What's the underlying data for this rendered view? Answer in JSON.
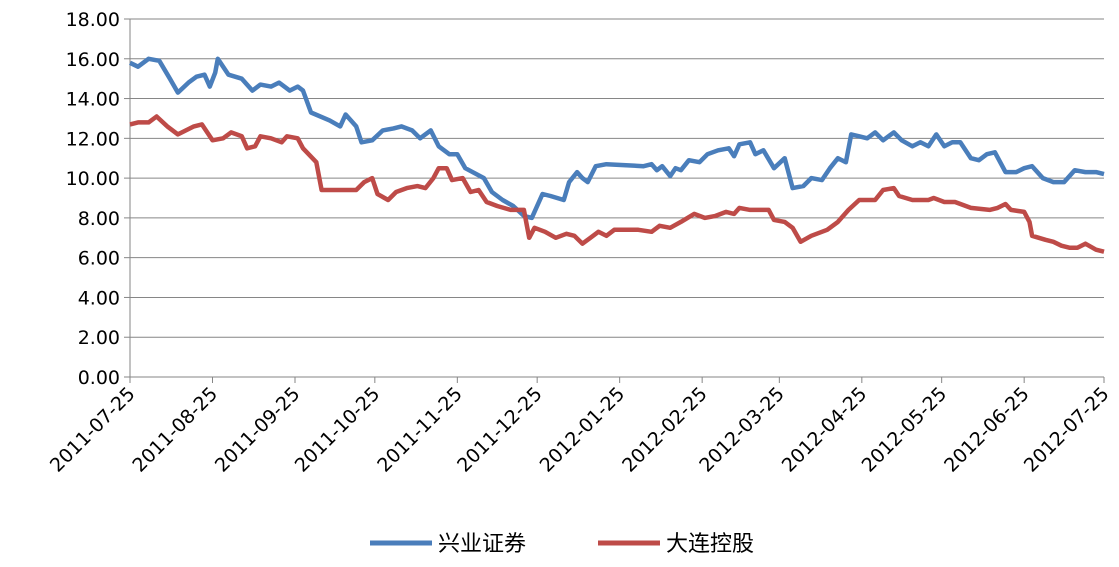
{
  "chart_data": {
    "type": "line",
    "xlim": [
      "2011-07-25",
      "2012-07-25"
    ],
    "xticks": [
      "2011-07-25",
      "2011-08-25",
      "2011-09-25",
      "2011-10-25",
      "2011-11-25",
      "2011-12-25",
      "2012-01-25",
      "2012-02-25",
      "2012-03-25",
      "2012-04-25",
      "2012-05-25",
      "2012-06-25",
      "2012-07-25"
    ],
    "ylim": [
      0,
      18
    ],
    "yticks": [
      {
        "value": 0,
        "label": "0.00"
      },
      {
        "value": 2,
        "label": "2.00"
      },
      {
        "value": 4,
        "label": "4.00"
      },
      {
        "value": 6,
        "label": "6.00"
      },
      {
        "value": 8,
        "label": "8.00"
      },
      {
        "value": 10,
        "label": "10.00"
      },
      {
        "value": 12,
        "label": "12.00"
      },
      {
        "value": 14,
        "label": "14.00"
      },
      {
        "value": 16,
        "label": "16.00"
      },
      {
        "value": 18,
        "label": "18.00"
      }
    ],
    "grid": true,
    "legend": "bottom",
    "series": [
      {
        "name": "兴业证券",
        "color": "#4a7ebb",
        "x": [
          "2011-07-25",
          "2011-07-28",
          "2011-08-01",
          "2011-08-05",
          "2011-08-09",
          "2011-08-12",
          "2011-08-16",
          "2011-08-19",
          "2011-08-22",
          "2011-08-24",
          "2011-08-26",
          "2011-08-27",
          "2011-08-31",
          "2011-09-05",
          "2011-09-09",
          "2011-09-12",
          "2011-09-16",
          "2011-09-19",
          "2011-09-23",
          "2011-09-26",
          "2011-09-28",
          "2011-10-01",
          "2011-10-08",
          "2011-10-12",
          "2011-10-14",
          "2011-10-18",
          "2011-10-20",
          "2011-10-24",
          "2011-10-28",
          "2011-11-01",
          "2011-11-04",
          "2011-11-08",
          "2011-11-11",
          "2011-11-15",
          "2011-11-18",
          "2011-11-22",
          "2011-11-25",
          "2011-11-28",
          "2011-12-05",
          "2011-12-08",
          "2011-12-12",
          "2011-12-16",
          "2011-12-20",
          "2011-12-23",
          "2011-12-27",
          "2011-12-30",
          "2012-01-04",
          "2012-01-06",
          "2012-01-09",
          "2012-01-11",
          "2012-01-13",
          "2012-01-16",
          "2012-01-20",
          "2012-02-03",
          "2012-02-06",
          "2012-02-08",
          "2012-02-10",
          "2012-02-13",
          "2012-02-15",
          "2012-02-17",
          "2012-02-20",
          "2012-02-24",
          "2012-02-27",
          "2012-03-02",
          "2012-03-06",
          "2012-03-08",
          "2012-03-10",
          "2012-03-14",
          "2012-03-16",
          "2012-03-19",
          "2012-03-23",
          "2012-03-27",
          "2012-03-30",
          "2012-04-03",
          "2012-04-06",
          "2012-04-10",
          "2012-04-13",
          "2012-04-16",
          "2012-04-19",
          "2012-04-21",
          "2012-04-24",
          "2012-04-27",
          "2012-04-30",
          "2012-05-03",
          "2012-05-07",
          "2012-05-10",
          "2012-05-14",
          "2012-05-17",
          "2012-05-20",
          "2012-05-23",
          "2012-05-26",
          "2012-05-29",
          "2012-06-01",
          "2012-06-05",
          "2012-06-08",
          "2012-06-11",
          "2012-06-14",
          "2012-06-18",
          "2012-06-22",
          "2012-06-25",
          "2012-06-28",
          "2012-07-02",
          "2012-07-06",
          "2012-07-10",
          "2012-07-14",
          "2012-07-18",
          "2012-07-22",
          "2012-07-25"
        ],
        "values": [
          15.8,
          15.6,
          16.0,
          15.9,
          15.0,
          14.3,
          14.8,
          15.1,
          15.2,
          14.6,
          15.3,
          16.0,
          15.2,
          15.0,
          14.4,
          14.7,
          14.6,
          14.8,
          14.4,
          14.6,
          14.4,
          13.3,
          12.9,
          12.6,
          13.2,
          12.6,
          11.8,
          11.9,
          12.4,
          12.5,
          12.6,
          12.4,
          12.0,
          12.4,
          11.6,
          11.2,
          11.2,
          10.5,
          10.0,
          9.3,
          8.9,
          8.6,
          8.1,
          8.0,
          9.2,
          9.1,
          8.9,
          9.8,
          10.3,
          10.0,
          9.8,
          10.6,
          10.7,
          10.6,
          10.7,
          10.4,
          10.6,
          10.1,
          10.5,
          10.4,
          10.9,
          10.8,
          11.2,
          11.4,
          11.5,
          11.1,
          11.7,
          11.8,
          11.2,
          11.4,
          10.5,
          11.0,
          9.5,
          9.6,
          10.0,
          9.9,
          10.5,
          11.0,
          10.8,
          12.2,
          12.1,
          12.0,
          12.3,
          11.9,
          12.3,
          11.9,
          11.6,
          11.8,
          11.6,
          12.2,
          11.6,
          11.8,
          11.8,
          11.0,
          10.9,
          11.2,
          11.3,
          10.3,
          10.3,
          10.5,
          10.6,
          10.0,
          9.8,
          9.8,
          10.4,
          10.3,
          10.3,
          10.2
        ]
      },
      {
        "name": "大连控股",
        "color": "#be4b48",
        "x": [
          "2011-07-25",
          "2011-07-28",
          "2011-08-01",
          "2011-08-04",
          "2011-08-08",
          "2011-08-12",
          "2011-08-18",
          "2011-08-21",
          "2011-08-25",
          "2011-08-29",
          "2011-09-01",
          "2011-09-05",
          "2011-09-07",
          "2011-09-10",
          "2011-09-12",
          "2011-09-16",
          "2011-09-20",
          "2011-09-22",
          "2011-09-26",
          "2011-09-28",
          "2011-10-03",
          "2011-10-05",
          "2011-10-10",
          "2011-10-14",
          "2011-10-18",
          "2011-10-21",
          "2011-10-24",
          "2011-10-26",
          "2011-10-30",
          "2011-11-02",
          "2011-11-06",
          "2011-11-10",
          "2011-11-13",
          "2011-11-16",
          "2011-11-18",
          "2011-11-21",
          "2011-11-23",
          "2011-11-27",
          "2011-11-30",
          "2011-12-03",
          "2011-12-06",
          "2011-12-10",
          "2011-12-15",
          "2011-12-20",
          "2011-12-22",
          "2011-12-24",
          "2011-12-28",
          "2012-01-01",
          "2012-01-05",
          "2012-01-08",
          "2012-01-11",
          "2012-01-14",
          "2012-01-17",
          "2012-01-20",
          "2012-01-23",
          "2012-02-01",
          "2012-02-06",
          "2012-02-09",
          "2012-02-13",
          "2012-02-17",
          "2012-02-22",
          "2012-02-26",
          "2012-03-01",
          "2012-03-05",
          "2012-03-08",
          "2012-03-10",
          "2012-03-14",
          "2012-03-18",
          "2012-03-21",
          "2012-03-23",
          "2012-03-27",
          "2012-03-30",
          "2012-04-02",
          "2012-04-06",
          "2012-04-12",
          "2012-04-16",
          "2012-04-20",
          "2012-04-24",
          "2012-04-30",
          "2012-05-03",
          "2012-05-07",
          "2012-05-09",
          "2012-05-14",
          "2012-05-20",
          "2012-05-22",
          "2012-05-26",
          "2012-05-30",
          "2012-06-05",
          "2012-06-12",
          "2012-06-15",
          "2012-06-18",
          "2012-06-20",
          "2012-06-25",
          "2012-06-27",
          "2012-06-28",
          "2012-07-03",
          "2012-07-06",
          "2012-07-09",
          "2012-07-12",
          "2012-07-15",
          "2012-07-18",
          "2012-07-22",
          "2012-07-25"
        ],
        "values": [
          12.7,
          12.8,
          12.8,
          13.1,
          12.6,
          12.2,
          12.6,
          12.7,
          11.9,
          12.0,
          12.3,
          12.1,
          11.5,
          11.6,
          12.1,
          12.0,
          11.8,
          12.1,
          12.0,
          11.5,
          10.8,
          9.4,
          9.4,
          9.4,
          9.4,
          9.8,
          10.0,
          9.2,
          8.9,
          9.3,
          9.5,
          9.6,
          9.5,
          10.0,
          10.5,
          10.5,
          9.9,
          10.0,
          9.3,
          9.4,
          8.8,
          8.6,
          8.4,
          8.4,
          7.0,
          7.5,
          7.3,
          7.0,
          7.2,
          7.1,
          6.7,
          7.0,
          7.3,
          7.1,
          7.4,
          7.4,
          7.3,
          7.6,
          7.5,
          7.8,
          8.2,
          8.0,
          8.1,
          8.3,
          8.2,
          8.5,
          8.4,
          8.4,
          8.4,
          7.9,
          7.8,
          7.5,
          6.8,
          7.1,
          7.4,
          7.8,
          8.4,
          8.9,
          8.9,
          9.4,
          9.5,
          9.1,
          8.9,
          8.9,
          9.0,
          8.8,
          8.8,
          8.5,
          8.4,
          8.5,
          8.7,
          8.4,
          8.3,
          7.8,
          7.1,
          6.9,
          6.8,
          6.6,
          6.5,
          6.5,
          6.7,
          6.4,
          6.3
        ]
      }
    ]
  }
}
